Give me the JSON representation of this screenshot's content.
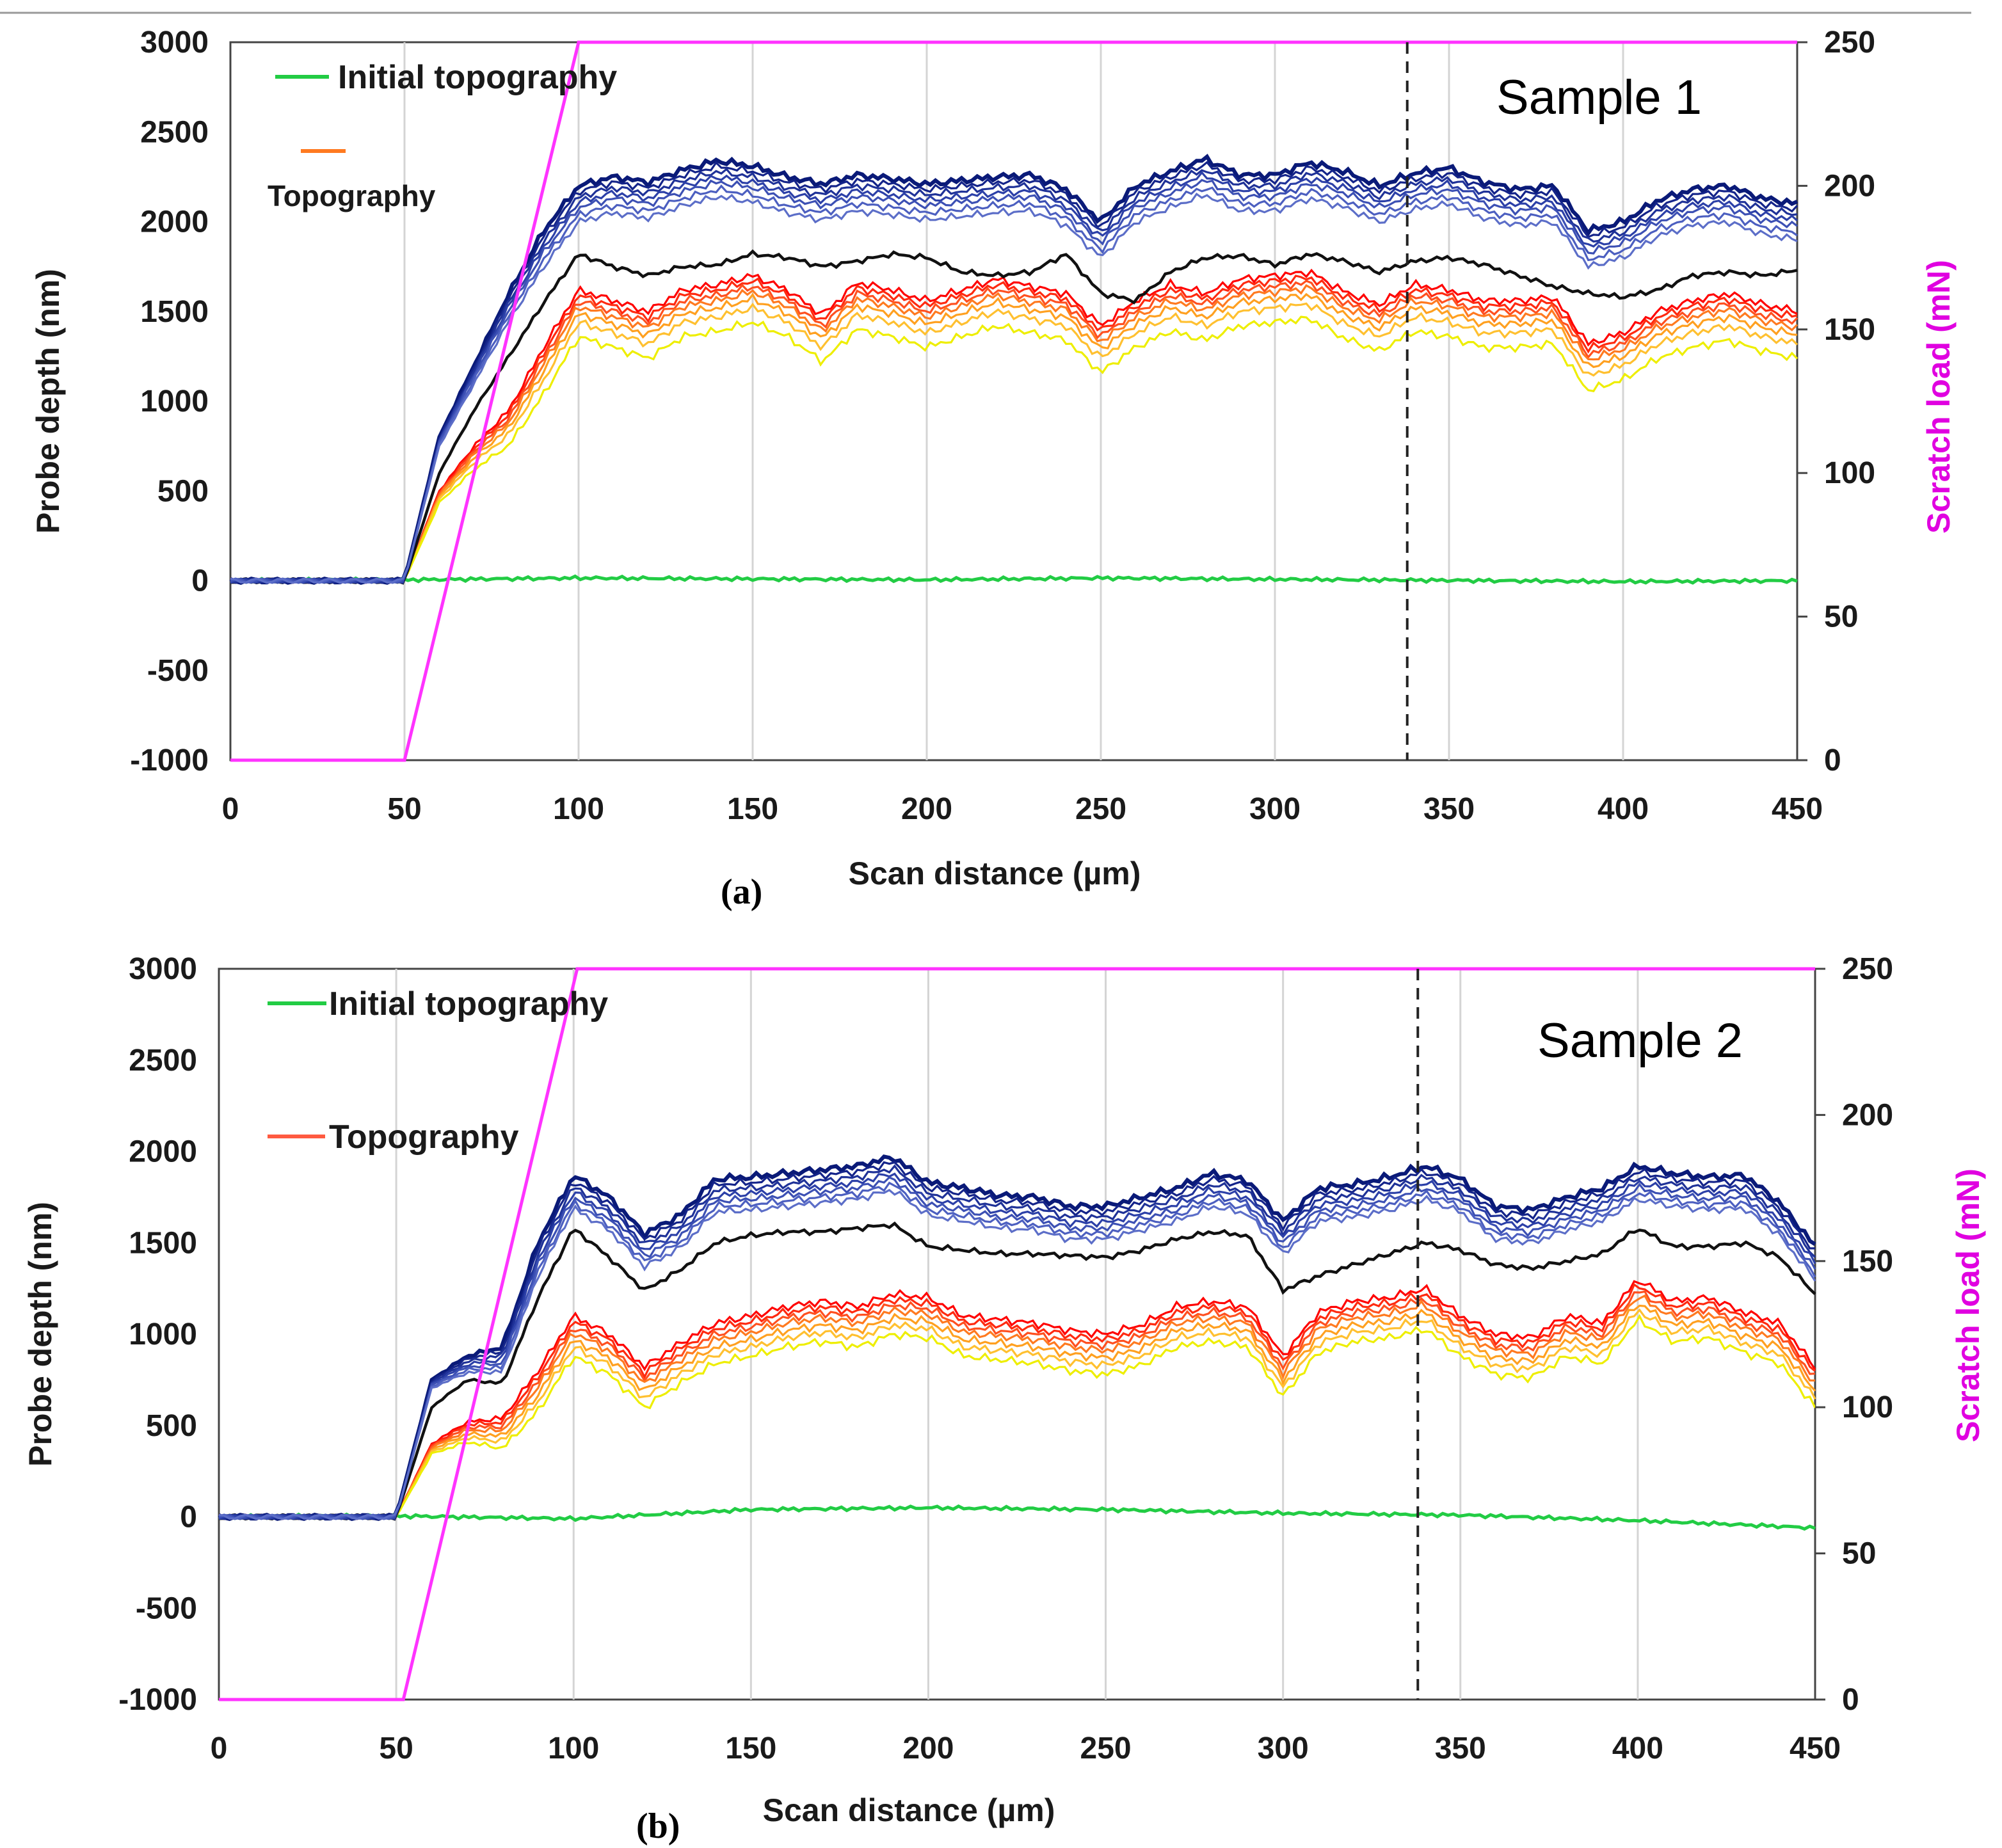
{
  "figure": {
    "top_rule": true
  },
  "colors": {
    "initial": "#22cc44",
    "load": "#ff33ff",
    "black": "#111111",
    "blues": [
      "#0a1a78",
      "#14248a",
      "#1f3298",
      "#2c40a8",
      "#3c50b4",
      "#4c5fc0",
      "#5c6ec8"
    ],
    "warm": [
      "#ff0000",
      "#ff2a10",
      "#ff5020",
      "#ff7a20",
      "#ffa020",
      "#ffc030",
      "#eeee00"
    ]
  },
  "chart_data": [
    {
      "type": "line",
      "panel_label": "(a)",
      "sample_label": "Sample 1",
      "xlabel": "Scan distance (µm)",
      "ylabel": "Probe depth (nm)",
      "y2label": "Scratch load (mN)",
      "xlim": [
        0,
        450
      ],
      "ylim": [
        -1000,
        3000
      ],
      "y2lim": [
        0,
        250
      ],
      "xticks": [
        "0",
        "50",
        "100",
        "150",
        "200",
        "250",
        "300",
        "350",
        "400",
        "450"
      ],
      "yticks": [
        "-1000",
        "-500",
        "0",
        "500",
        "1000",
        "1500",
        "2000",
        "2500",
        "3000"
      ],
      "y2ticks": [
        "0",
        "50",
        "100",
        "150",
        "200",
        "250"
      ],
      "vline_x": 338,
      "legend": {
        "initial": "Initial topography",
        "topography": "Topography",
        "topography_style": "small"
      },
      "onset": 50,
      "load": {
        "x": [
          0,
          50,
          100,
          450
        ],
        "y": [
          0,
          0,
          250,
          250
        ]
      },
      "initial": {
        "x": [
          0,
          50,
          100,
          150,
          200,
          250,
          300,
          350,
          400,
          450
        ],
        "y": [
          0,
          5,
          15,
          10,
          5,
          15,
          8,
          2,
          -5,
          0
        ]
      },
      "penetration": {
        "x": [
          50,
          60,
          70,
          80,
          90,
          100,
          110,
          120,
          130,
          140,
          150,
          160,
          170,
          180,
          190,
          200,
          210,
          220,
          230,
          240,
          250,
          260,
          270,
          280,
          290,
          300,
          310,
          320,
          330,
          340,
          350,
          360,
          370,
          380,
          390,
          400,
          410,
          420,
          430,
          440,
          450
        ],
        "y": [
          0,
          800,
          1200,
          1600,
          1950,
          2200,
          2250,
          2220,
          2290,
          2340,
          2310,
          2250,
          2210,
          2260,
          2240,
          2210,
          2230,
          2250,
          2260,
          2180,
          2000,
          2200,
          2280,
          2350,
          2260,
          2260,
          2330,
          2280,
          2200,
          2270,
          2300,
          2220,
          2180,
          2200,
          1950,
          2000,
          2120,
          2180,
          2200,
          2130,
          2100
        ],
        "offsets": [
          0,
          -30,
          -60,
          -90,
          -120,
          -160,
          -200
        ]
      },
      "residual_black": {
        "x": [
          50,
          60,
          70,
          80,
          90,
          100,
          110,
          120,
          130,
          140,
          150,
          160,
          170,
          180,
          190,
          200,
          210,
          220,
          230,
          240,
          250,
          260,
          270,
          280,
          290,
          300,
          310,
          320,
          330,
          340,
          350,
          360,
          370,
          380,
          390,
          400,
          410,
          420,
          430,
          440,
          450
        ],
        "y": [
          0,
          600,
          950,
          1250,
          1550,
          1820,
          1750,
          1700,
          1750,
          1760,
          1820,
          1800,
          1750,
          1780,
          1820,
          1800,
          1720,
          1700,
          1720,
          1820,
          1600,
          1560,
          1720,
          1800,
          1810,
          1760,
          1820,
          1780,
          1720,
          1780,
          1800,
          1760,
          1700,
          1640,
          1600,
          1580,
          1620,
          1700,
          1720,
          1700,
          1730
        ]
      },
      "residual": {
        "x": [
          50,
          60,
          70,
          80,
          90,
          100,
          110,
          120,
          130,
          140,
          150,
          160,
          170,
          180,
          190,
          200,
          210,
          220,
          230,
          240,
          250,
          260,
          270,
          280,
          290,
          300,
          310,
          320,
          330,
          340,
          350,
          360,
          370,
          380,
          390,
          400,
          410,
          420,
          430,
          440,
          450
        ],
        "y": [
          0,
          500,
          750,
          950,
          1300,
          1620,
          1560,
          1500,
          1620,
          1650,
          1700,
          1620,
          1480,
          1660,
          1620,
          1560,
          1620,
          1680,
          1640,
          1600,
          1420,
          1560,
          1650,
          1600,
          1680,
          1700,
          1720,
          1610,
          1540,
          1650,
          1620,
          1560,
          1560,
          1580,
          1320,
          1380,
          1500,
          1560,
          1600,
          1540,
          1500
        ],
        "offsets": [
          0,
          -30,
          -60,
          -90,
          -130,
          -180,
          -260
        ]
      }
    },
    {
      "type": "line",
      "panel_label": "(b)",
      "sample_label": "Sample 2",
      "xlabel": "Scan distance (µm)",
      "ylabel": "Probe depth (nm)",
      "y2label": "Scratch load (mN)",
      "xlim": [
        0,
        450
      ],
      "ylim": [
        -1000,
        3000
      ],
      "y2lim": [
        0,
        250
      ],
      "xticks": [
        "0",
        "50",
        "100",
        "150",
        "200",
        "250",
        "300",
        "350",
        "400",
        "450"
      ],
      "yticks": [
        "-1000",
        "-500",
        "0",
        "500",
        "1000",
        "1500",
        "2000",
        "2500",
        "3000"
      ],
      "y2ticks": [
        "0",
        "50",
        "100",
        "150",
        "200",
        "250"
      ],
      "vline_x": 338,
      "legend": {
        "initial": "Initial topography",
        "topography": "Topography",
        "topography_style": "large"
      },
      "onset": 50,
      "load": {
        "x": [
          0,
          52,
          101,
          450
        ],
        "y": [
          0,
          0,
          250,
          250
        ]
      },
      "initial": {
        "x": [
          0,
          50,
          100,
          150,
          200,
          250,
          300,
          350,
          400,
          450
        ],
        "y": [
          0,
          5,
          -10,
          40,
          50,
          40,
          20,
          10,
          -20,
          -60
        ]
      },
      "penetration": {
        "x": [
          50,
          60,
          70,
          80,
          90,
          100,
          110,
          120,
          130,
          140,
          150,
          160,
          170,
          180,
          190,
          200,
          210,
          220,
          230,
          240,
          250,
          260,
          270,
          280,
          290,
          300,
          310,
          320,
          330,
          340,
          350,
          360,
          370,
          380,
          390,
          400,
          410,
          420,
          430,
          440,
          450
        ],
        "y": [
          0,
          750,
          880,
          930,
          1500,
          1870,
          1750,
          1550,
          1650,
          1850,
          1860,
          1880,
          1900,
          1920,
          1970,
          1830,
          1800,
          1760,
          1750,
          1700,
          1700,
          1750,
          1800,
          1880,
          1840,
          1620,
          1800,
          1820,
          1860,
          1920,
          1850,
          1700,
          1680,
          1750,
          1800,
          1920,
          1880,
          1860,
          1870,
          1720,
          1480
        ],
        "offsets": [
          0,
          -30,
          -60,
          -90,
          -120,
          -150,
          -180
        ]
      },
      "residual_black": {
        "x": [
          50,
          60,
          70,
          80,
          90,
          100,
          110,
          120,
          130,
          140,
          150,
          160,
          170,
          180,
          190,
          200,
          210,
          220,
          230,
          240,
          250,
          260,
          270,
          280,
          290,
          300,
          310,
          320,
          330,
          340,
          350,
          360,
          370,
          380,
          390,
          400,
          410,
          420,
          430,
          440,
          450
        ],
        "y": [
          0,
          600,
          750,
          730,
          1200,
          1580,
          1420,
          1240,
          1350,
          1500,
          1540,
          1560,
          1560,
          1580,
          1600,
          1480,
          1460,
          1440,
          1440,
          1430,
          1420,
          1460,
          1520,
          1560,
          1540,
          1240,
          1320,
          1380,
          1440,
          1500,
          1460,
          1380,
          1360,
          1400,
          1440,
          1580,
          1480,
          1480,
          1500,
          1420,
          1220
        ]
      },
      "residual": {
        "x": [
          50,
          60,
          70,
          80,
          90,
          100,
          110,
          120,
          130,
          140,
          150,
          160,
          170,
          180,
          190,
          200,
          210,
          220,
          230,
          240,
          250,
          260,
          270,
          280,
          290,
          300,
          310,
          320,
          330,
          340,
          350,
          360,
          370,
          380,
          390,
          400,
          410,
          420,
          430,
          440,
          450
        ],
        "y": [
          0,
          400,
          520,
          540,
          800,
          1100,
          1000,
          820,
          950,
          1060,
          1100,
          1150,
          1180,
          1150,
          1220,
          1200,
          1100,
          1080,
          1060,
          1020,
          1000,
          1050,
          1150,
          1180,
          1150,
          880,
          1120,
          1180,
          1200,
          1250,
          1100,
          1000,
          980,
          1100,
          1060,
          1300,
          1180,
          1200,
          1120,
          1060,
          820
        ],
        "offsets": [
          0,
          -30,
          -60,
          -90,
          -130,
          -170,
          -220
        ]
      }
    }
  ]
}
